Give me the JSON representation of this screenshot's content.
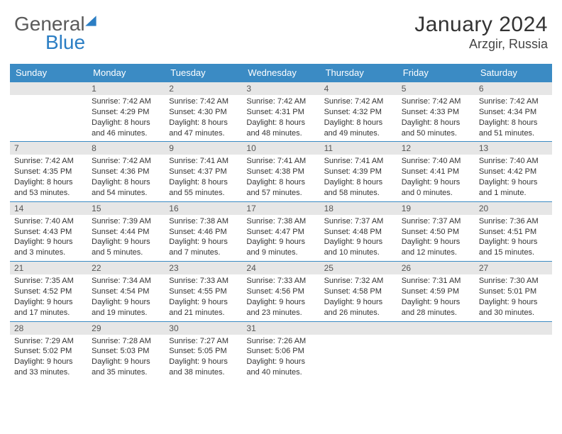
{
  "brand": {
    "name1": "General",
    "name2": "Blue"
  },
  "title": "January 2024",
  "location": "Arzgir, Russia",
  "colors": {
    "header_bg": "#3b8bc4",
    "header_text": "#ffffff",
    "daynum_bg": "#e6e6e6",
    "rule": "#3b8bc4",
    "logo_gray": "#5a5a5a",
    "logo_blue": "#2b7ec4"
  },
  "fonts": {
    "base_size": 11,
    "header_size": 13,
    "title_size": 30,
    "location_size": 18
  },
  "weekdays": [
    "Sunday",
    "Monday",
    "Tuesday",
    "Wednesday",
    "Thursday",
    "Friday",
    "Saturday"
  ],
  "weeks": [
    [
      {
        "blank": true
      },
      {
        "day": "1",
        "sunrise": "Sunrise: 7:42 AM",
        "sunset": "Sunset: 4:29 PM",
        "day1": "Daylight: 8 hours",
        "day2": "and 46 minutes."
      },
      {
        "day": "2",
        "sunrise": "Sunrise: 7:42 AM",
        "sunset": "Sunset: 4:30 PM",
        "day1": "Daylight: 8 hours",
        "day2": "and 47 minutes."
      },
      {
        "day": "3",
        "sunrise": "Sunrise: 7:42 AM",
        "sunset": "Sunset: 4:31 PM",
        "day1": "Daylight: 8 hours",
        "day2": "and 48 minutes."
      },
      {
        "day": "4",
        "sunrise": "Sunrise: 7:42 AM",
        "sunset": "Sunset: 4:32 PM",
        "day1": "Daylight: 8 hours",
        "day2": "and 49 minutes."
      },
      {
        "day": "5",
        "sunrise": "Sunrise: 7:42 AM",
        "sunset": "Sunset: 4:33 PM",
        "day1": "Daylight: 8 hours",
        "day2": "and 50 minutes."
      },
      {
        "day": "6",
        "sunrise": "Sunrise: 7:42 AM",
        "sunset": "Sunset: 4:34 PM",
        "day1": "Daylight: 8 hours",
        "day2": "and 51 minutes."
      }
    ],
    [
      {
        "day": "7",
        "sunrise": "Sunrise: 7:42 AM",
        "sunset": "Sunset: 4:35 PM",
        "day1": "Daylight: 8 hours",
        "day2": "and 53 minutes."
      },
      {
        "day": "8",
        "sunrise": "Sunrise: 7:42 AM",
        "sunset": "Sunset: 4:36 PM",
        "day1": "Daylight: 8 hours",
        "day2": "and 54 minutes."
      },
      {
        "day": "9",
        "sunrise": "Sunrise: 7:41 AM",
        "sunset": "Sunset: 4:37 PM",
        "day1": "Daylight: 8 hours",
        "day2": "and 55 minutes."
      },
      {
        "day": "10",
        "sunrise": "Sunrise: 7:41 AM",
        "sunset": "Sunset: 4:38 PM",
        "day1": "Daylight: 8 hours",
        "day2": "and 57 minutes."
      },
      {
        "day": "11",
        "sunrise": "Sunrise: 7:41 AM",
        "sunset": "Sunset: 4:39 PM",
        "day1": "Daylight: 8 hours",
        "day2": "and 58 minutes."
      },
      {
        "day": "12",
        "sunrise": "Sunrise: 7:40 AM",
        "sunset": "Sunset: 4:41 PM",
        "day1": "Daylight: 9 hours",
        "day2": "and 0 minutes."
      },
      {
        "day": "13",
        "sunrise": "Sunrise: 7:40 AM",
        "sunset": "Sunset: 4:42 PM",
        "day1": "Daylight: 9 hours",
        "day2": "and 1 minute."
      }
    ],
    [
      {
        "day": "14",
        "sunrise": "Sunrise: 7:40 AM",
        "sunset": "Sunset: 4:43 PM",
        "day1": "Daylight: 9 hours",
        "day2": "and 3 minutes."
      },
      {
        "day": "15",
        "sunrise": "Sunrise: 7:39 AM",
        "sunset": "Sunset: 4:44 PM",
        "day1": "Daylight: 9 hours",
        "day2": "and 5 minutes."
      },
      {
        "day": "16",
        "sunrise": "Sunrise: 7:38 AM",
        "sunset": "Sunset: 4:46 PM",
        "day1": "Daylight: 9 hours",
        "day2": "and 7 minutes."
      },
      {
        "day": "17",
        "sunrise": "Sunrise: 7:38 AM",
        "sunset": "Sunset: 4:47 PM",
        "day1": "Daylight: 9 hours",
        "day2": "and 9 minutes."
      },
      {
        "day": "18",
        "sunrise": "Sunrise: 7:37 AM",
        "sunset": "Sunset: 4:48 PM",
        "day1": "Daylight: 9 hours",
        "day2": "and 10 minutes."
      },
      {
        "day": "19",
        "sunrise": "Sunrise: 7:37 AM",
        "sunset": "Sunset: 4:50 PM",
        "day1": "Daylight: 9 hours",
        "day2": "and 12 minutes."
      },
      {
        "day": "20",
        "sunrise": "Sunrise: 7:36 AM",
        "sunset": "Sunset: 4:51 PM",
        "day1": "Daylight: 9 hours",
        "day2": "and 15 minutes."
      }
    ],
    [
      {
        "day": "21",
        "sunrise": "Sunrise: 7:35 AM",
        "sunset": "Sunset: 4:52 PM",
        "day1": "Daylight: 9 hours",
        "day2": "and 17 minutes."
      },
      {
        "day": "22",
        "sunrise": "Sunrise: 7:34 AM",
        "sunset": "Sunset: 4:54 PM",
        "day1": "Daylight: 9 hours",
        "day2": "and 19 minutes."
      },
      {
        "day": "23",
        "sunrise": "Sunrise: 7:33 AM",
        "sunset": "Sunset: 4:55 PM",
        "day1": "Daylight: 9 hours",
        "day2": "and 21 minutes."
      },
      {
        "day": "24",
        "sunrise": "Sunrise: 7:33 AM",
        "sunset": "Sunset: 4:56 PM",
        "day1": "Daylight: 9 hours",
        "day2": "and 23 minutes."
      },
      {
        "day": "25",
        "sunrise": "Sunrise: 7:32 AM",
        "sunset": "Sunset: 4:58 PM",
        "day1": "Daylight: 9 hours",
        "day2": "and 26 minutes."
      },
      {
        "day": "26",
        "sunrise": "Sunrise: 7:31 AM",
        "sunset": "Sunset: 4:59 PM",
        "day1": "Daylight: 9 hours",
        "day2": "and 28 minutes."
      },
      {
        "day": "27",
        "sunrise": "Sunrise: 7:30 AM",
        "sunset": "Sunset: 5:01 PM",
        "day1": "Daylight: 9 hours",
        "day2": "and 30 minutes."
      }
    ],
    [
      {
        "day": "28",
        "sunrise": "Sunrise: 7:29 AM",
        "sunset": "Sunset: 5:02 PM",
        "day1": "Daylight: 9 hours",
        "day2": "and 33 minutes."
      },
      {
        "day": "29",
        "sunrise": "Sunrise: 7:28 AM",
        "sunset": "Sunset: 5:03 PM",
        "day1": "Daylight: 9 hours",
        "day2": "and 35 minutes."
      },
      {
        "day": "30",
        "sunrise": "Sunrise: 7:27 AM",
        "sunset": "Sunset: 5:05 PM",
        "day1": "Daylight: 9 hours",
        "day2": "and 38 minutes."
      },
      {
        "day": "31",
        "sunrise": "Sunrise: 7:26 AM",
        "sunset": "Sunset: 5:06 PM",
        "day1": "Daylight: 9 hours",
        "day2": "and 40 minutes."
      },
      {
        "blank": true
      },
      {
        "blank": true
      },
      {
        "blank": true
      }
    ]
  ]
}
